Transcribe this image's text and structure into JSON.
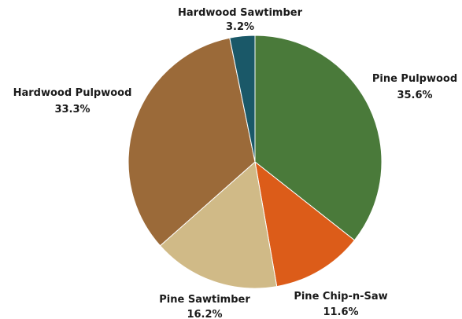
{
  "chart_data": {
    "type": "pie",
    "title": "",
    "start_angle_deg": 0,
    "direction": "clockwise",
    "slices": [
      {
        "name": "Pine Pulpwood",
        "value": 35.6,
        "label": "35.6%",
        "color": "#4a7a3a"
      },
      {
        "name": "Pine Chip-n-Saw",
        "value": 11.6,
        "label": "11.6%",
        "color": "#dc5c19"
      },
      {
        "name": "Pine Sawtimber",
        "value": 16.2,
        "label": "16.2%",
        "color": "#d0ba87"
      },
      {
        "name": "Hardwood Pulpwood",
        "value": 33.3,
        "label": "33.3%",
        "color": "#9b6a39"
      },
      {
        "name": "Hardwood Sawtimber",
        "value": 3.2,
        "label": "3.2%",
        "color": "#1a5868"
      }
    ]
  }
}
